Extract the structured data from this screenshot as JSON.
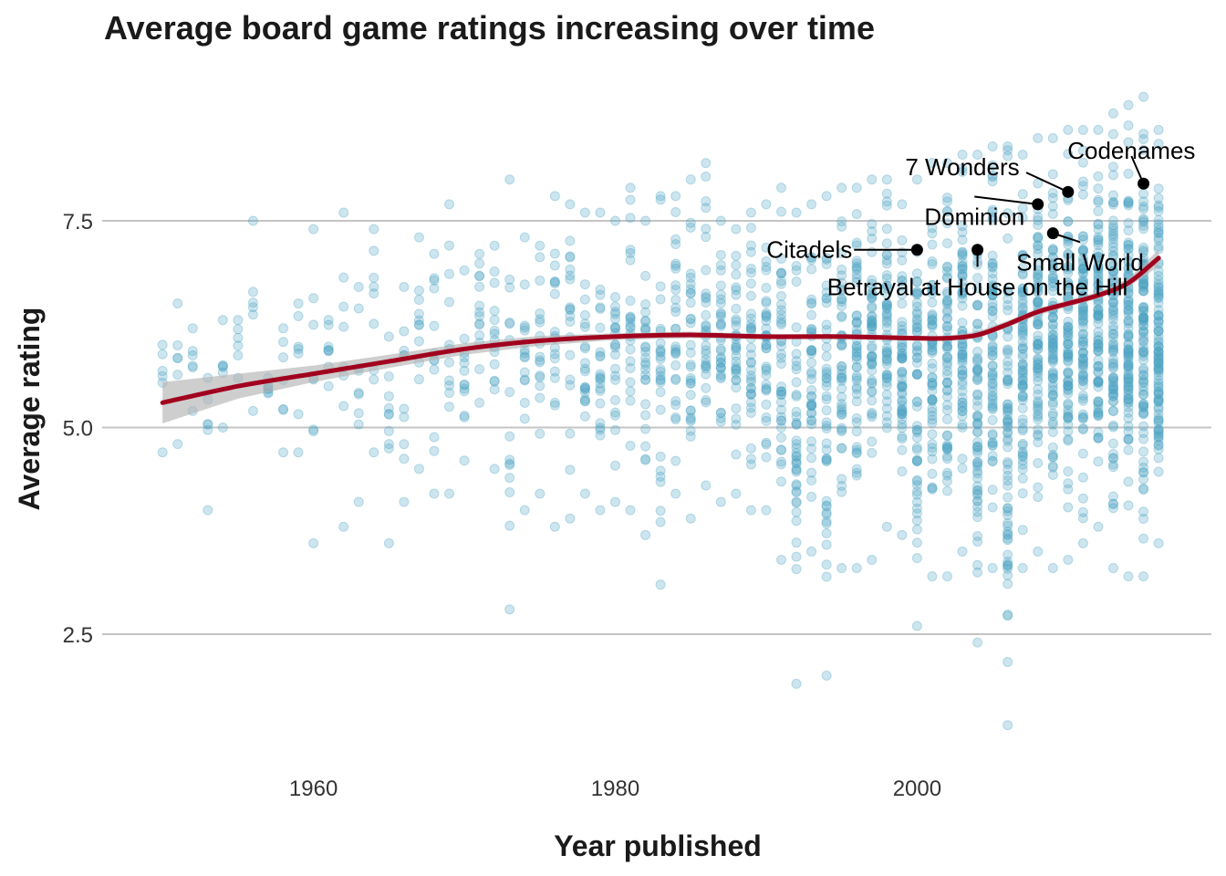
{
  "chart_data": {
    "type": "scatter",
    "title": "Average board game ratings increasing over time",
    "xlabel": "Year published",
    "ylabel": "Average rating",
    "xlim": [
      1946,
      2019.5
    ],
    "ylim": [
      0.9,
      9.2
    ],
    "x_ticks": [
      1960,
      1980,
      2000
    ],
    "x_tick_labels": [
      "1960",
      "1980",
      "2000"
    ],
    "y_ticks": [
      2.5,
      5.0,
      7.5
    ],
    "y_tick_labels": [
      "2.5",
      "5.0",
      "7.5"
    ],
    "grid": "horizontal major",
    "colors": {
      "points": "#4aa3c2",
      "trend": "#a1001e",
      "ribbon": "#b3b3b3",
      "grid": "#c4c4c4",
      "annotation": "#000000"
    },
    "year_ranges": [
      [
        1950,
        4.7,
        6.0
      ],
      [
        1951,
        4.8,
        6.5
      ],
      [
        1952,
        5.2,
        6.2
      ],
      [
        1953,
        4.0,
        5.6
      ],
      [
        1954,
        5.0,
        6.3
      ],
      [
        1955,
        5.6,
        6.3
      ],
      [
        1956,
        5.2,
        7.5
      ],
      [
        1957,
        5.5,
        5.6
      ],
      [
        1958,
        4.7,
        6.2
      ],
      [
        1959,
        4.7,
        6.5
      ],
      [
        1960,
        3.6,
        7.4
      ],
      [
        1961,
        5.5,
        6.3
      ],
      [
        1962,
        3.8,
        7.6
      ],
      [
        1963,
        4.1,
        6.7
      ],
      [
        1964,
        4.7,
        7.4
      ],
      [
        1965,
        3.6,
        6.1
      ],
      [
        1966,
        4.1,
        6.7
      ],
      [
        1967,
        4.5,
        7.3
      ],
      [
        1968,
        4.2,
        7.1
      ],
      [
        1969,
        4.2,
        7.7
      ],
      [
        1970,
        4.6,
        6.9
      ],
      [
        1971,
        5.3,
        7.1
      ],
      [
        1972,
        4.5,
        7.2
      ],
      [
        1973,
        2.8,
        8.0
      ],
      [
        1974,
        4.0,
        7.3
      ],
      [
        1975,
        4.2,
        7.2
      ],
      [
        1976,
        3.8,
        7.8
      ],
      [
        1977,
        3.9,
        7.7
      ],
      [
        1978,
        4.2,
        7.6
      ],
      [
        1979,
        4.0,
        7.6
      ],
      [
        1980,
        4.1,
        7.5
      ],
      [
        1981,
        4.0,
        7.9
      ],
      [
        1982,
        3.7,
        7.5
      ],
      [
        1983,
        3.1,
        7.8
      ],
      [
        1984,
        4.2,
        7.8
      ],
      [
        1985,
        3.9,
        8.0
      ],
      [
        1986,
        4.3,
        8.2
      ],
      [
        1987,
        4.1,
        7.5
      ],
      [
        1988,
        4.2,
        7.4
      ],
      [
        1989,
        4.0,
        7.6
      ],
      [
        1990,
        4.0,
        7.7
      ],
      [
        1991,
        3.4,
        7.9
      ],
      [
        1992,
        1.9,
        7.6
      ],
      [
        1993,
        3.5,
        7.7
      ],
      [
        1994,
        2.0,
        7.8
      ],
      [
        1995,
        3.3,
        7.9
      ],
      [
        1996,
        3.3,
        7.9
      ],
      [
        1997,
        3.4,
        8.0
      ],
      [
        1998,
        3.8,
        8.0
      ],
      [
        1999,
        3.7,
        7.7
      ],
      [
        2000,
        2.6,
        8.0
      ],
      [
        2001,
        3.2,
        8.2
      ],
      [
        2002,
        3.2,
        8.2
      ],
      [
        2003,
        3.5,
        8.3
      ],
      [
        2004,
        2.4,
        8.3
      ],
      [
        2005,
        3.3,
        8.4
      ],
      [
        2006,
        1.4,
        8.4
      ],
      [
        2007,
        3.3,
        8.3
      ],
      [
        2008,
        3.5,
        8.5
      ],
      [
        2009,
        3.3,
        8.5
      ],
      [
        2010,
        3.4,
        8.6
      ],
      [
        2011,
        3.6,
        8.6
      ],
      [
        2012,
        3.8,
        8.6
      ],
      [
        2013,
        3.3,
        8.8
      ],
      [
        2014,
        3.2,
        8.9
      ],
      [
        2015,
        3.2,
        9.0
      ],
      [
        2016,
        3.6,
        8.6
      ]
    ],
    "trend_line": {
      "x": [
        1950,
        1955,
        1960,
        1965,
        1970,
        1975,
        1980,
        1985,
        1990,
        1995,
        2000,
        2002,
        2004,
        2006,
        2008,
        2010,
        2012,
        2014,
        2016
      ],
      "y": [
        5.3,
        5.5,
        5.65,
        5.8,
        5.95,
        6.05,
        6.1,
        6.12,
        6.1,
        6.1,
        6.08,
        6.08,
        6.12,
        6.25,
        6.4,
        6.5,
        6.6,
        6.75,
        7.05
      ],
      "band_lower": [
        5.05,
        5.35,
        5.55,
        5.72,
        5.88,
        5.99,
        6.06,
        6.08,
        6.07,
        6.07,
        6.05,
        6.05,
        6.08,
        6.21,
        6.36,
        6.46,
        6.56,
        6.7,
        6.95
      ],
      "band_upper": [
        5.55,
        5.65,
        5.75,
        5.88,
        6.02,
        6.11,
        6.14,
        6.16,
        6.13,
        6.13,
        6.11,
        6.11,
        6.16,
        6.29,
        6.44,
        6.54,
        6.64,
        6.8,
        7.15
      ]
    },
    "annotations": [
      {
        "label": "Citadels",
        "x": 2000,
        "y": 7.15,
        "dx": -4.3,
        "dy": 0.0,
        "anchor": "end"
      },
      {
        "label": "Betrayal at House on the Hill",
        "x": 2004,
        "y": 7.15,
        "dx": 0.0,
        "dy": -0.45,
        "anchor": "middle"
      },
      {
        "label": "Dominion",
        "x": 2008,
        "y": 7.7,
        "dx": -4.2,
        "dy": -0.15,
        "anchor": "middle"
      },
      {
        "label": "7 Wonders",
        "x": 2010,
        "y": 7.85,
        "dx": -7.0,
        "dy": 0.3,
        "anchor": "middle"
      },
      {
        "label": "Small World",
        "x": 2009,
        "y": 7.35,
        "dx": 1.8,
        "dy": -0.35,
        "anchor": "middle"
      },
      {
        "label": "Codenames",
        "x": 2015,
        "y": 7.95,
        "dx": -0.8,
        "dy": 0.4,
        "anchor": "middle"
      }
    ]
  }
}
